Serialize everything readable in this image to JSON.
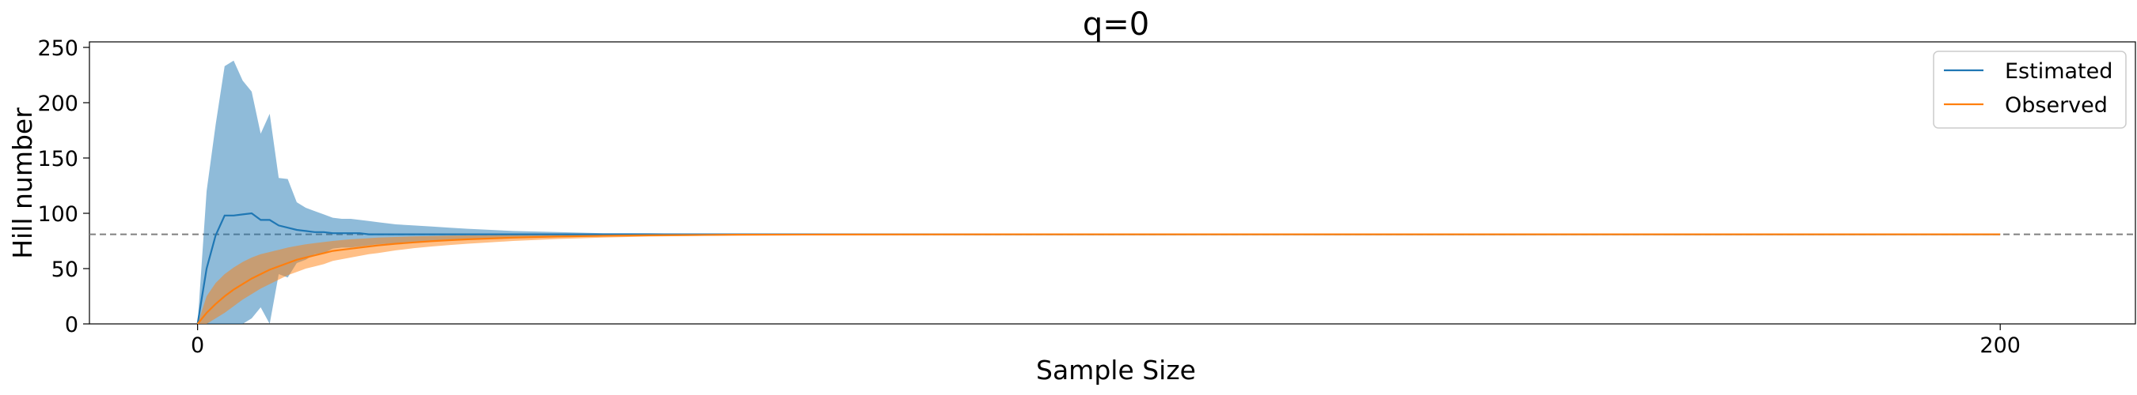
{
  "chart_data": {
    "type": "area",
    "title": "q=0",
    "xlabel": "Sample Size",
    "ylabel": "Hill number",
    "xlim": [
      -12,
      215
    ],
    "ylim": [
      0,
      255
    ],
    "x_ticks": [
      "0",
      "200"
    ],
    "x_tick_values": [
      0,
      200
    ],
    "y_ticks": [
      "0",
      "50",
      "100",
      "150",
      "200",
      "250"
    ],
    "y_tick_values": [
      0,
      50,
      100,
      150,
      200,
      250
    ],
    "reference_line": 81,
    "legend_position": "top-right",
    "series": [
      {
        "name": "Estimated",
        "color": "#1f77b4",
        "band_color": "#1f77b4",
        "x": [
          0,
          1,
          2,
          3,
          4,
          5,
          6,
          7,
          8,
          9,
          10,
          11,
          12,
          13,
          14,
          15,
          16,
          17,
          18,
          19,
          20,
          22,
          24,
          26,
          28,
          30,
          35,
          40,
          45,
          50,
          60,
          70,
          80,
          90,
          100,
          120,
          150,
          200
        ],
        "y": [
          0,
          50,
          80,
          98,
          98,
          99,
          100,
          94,
          94,
          89,
          87,
          85,
          84,
          83,
          83,
          82,
          82,
          82,
          82,
          81,
          81,
          81,
          81,
          81,
          81,
          81,
          81,
          81,
          81,
          81,
          81,
          81,
          81,
          81,
          81,
          81,
          81,
          81
        ],
        "upper": [
          0,
          120,
          180,
          233,
          238,
          220,
          210,
          172,
          190,
          132,
          131,
          110,
          105,
          102,
          99,
          96,
          95,
          95,
          94,
          93,
          92,
          90,
          89,
          88,
          87,
          86,
          84,
          83,
          82,
          82,
          81,
          81,
          81,
          81,
          81,
          81,
          81,
          81
        ],
        "lower": [
          0,
          -20,
          -30,
          -15,
          -5,
          0,
          5,
          15,
          0,
          45,
          42,
          55,
          58,
          63,
          64,
          68,
          69,
          69,
          70,
          71,
          72,
          73,
          74,
          75,
          76,
          77,
          78,
          79,
          80,
          80,
          81,
          81,
          81,
          81,
          81,
          81,
          81,
          81
        ]
      },
      {
        "name": "Observed",
        "color": "#ff7f0e",
        "band_color": "#ff7f0e",
        "x": [
          0,
          1,
          2,
          3,
          4,
          5,
          6,
          7,
          8,
          9,
          10,
          11,
          12,
          13,
          14,
          15,
          16,
          17,
          18,
          19,
          20,
          22,
          24,
          26,
          28,
          30,
          35,
          40,
          45,
          50,
          60,
          70,
          80,
          90,
          100,
          120,
          150,
          200
        ],
        "y": [
          0,
          10,
          18,
          25,
          31,
          36,
          41,
          45,
          49,
          52,
          55,
          58,
          60,
          62,
          64,
          66,
          67,
          68,
          69,
          70,
          71,
          72.5,
          73.7,
          74.8,
          75.7,
          76.5,
          78,
          79,
          79.7,
          80.1,
          80.6,
          80.8,
          80.9,
          81,
          81,
          81,
          81,
          81
        ],
        "upper": [
          0,
          25,
          37,
          45,
          51,
          56,
          60,
          63,
          65,
          67,
          69,
          70.5,
          72,
          73,
          74,
          75,
          75.8,
          76.5,
          77,
          77.5,
          78,
          78.6,
          79.1,
          79.5,
          79.8,
          80,
          80.4,
          80.7,
          80.9,
          81,
          81,
          81,
          81,
          81,
          81,
          81,
          81,
          81
        ],
        "lower": [
          0,
          0,
          5,
          10,
          16,
          22,
          27,
          32,
          36,
          40,
          44,
          47,
          50,
          52,
          54,
          57,
          58.5,
          60,
          61.5,
          63,
          64,
          66.5,
          68.5,
          70,
          71.3,
          72.5,
          75,
          76.8,
          78,
          79,
          80.1,
          80.6,
          80.8,
          80.9,
          81,
          81,
          81,
          81
        ]
      }
    ]
  }
}
